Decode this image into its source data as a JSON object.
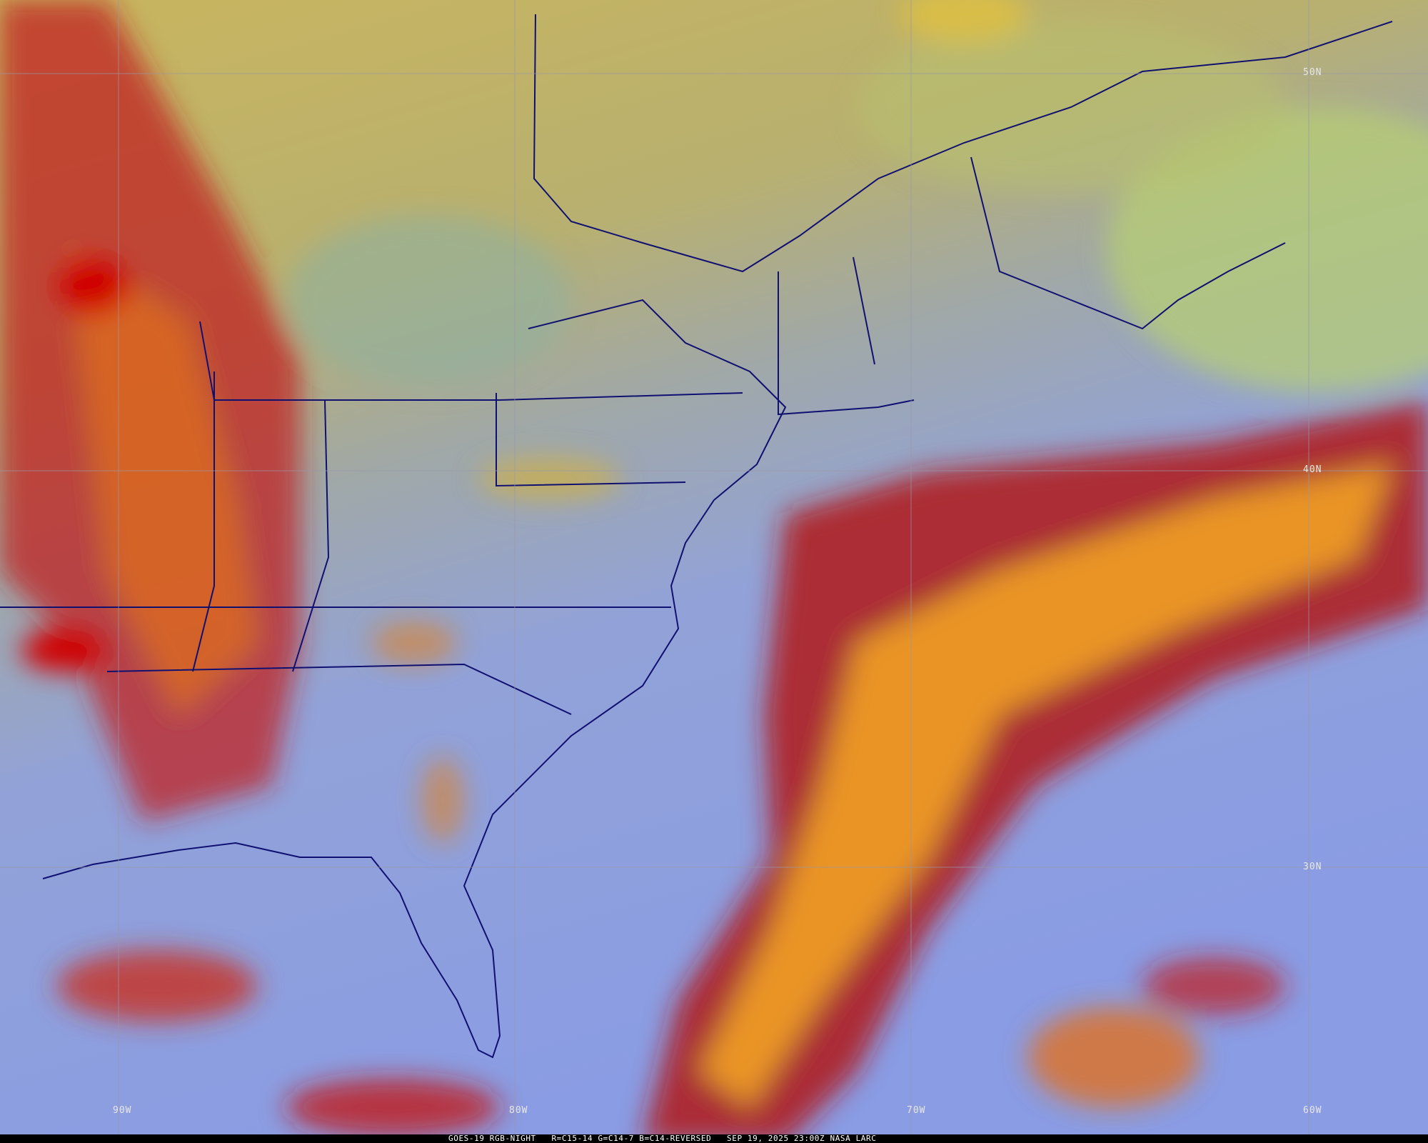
{
  "caption": "GOES-19 RGB-NIGHT   R=C15-14 G=C14-7 B=C14-REVERSED   SEP 19, 2025 23:00Z NASA LARC",
  "latitude_labels": [
    "50N",
    "40N",
    "30N"
  ],
  "longitude_labels": [
    "90W",
    "80W",
    "70W",
    "60W"
  ],
  "colors": {
    "clear_land_north": "#c8b060",
    "clear_ocean_south": "#8c9ee0",
    "high_cloud_red": "#c81010",
    "cloud_orange": "#f0a020",
    "boundaries": "#101070",
    "grid": "#9090a0"
  }
}
